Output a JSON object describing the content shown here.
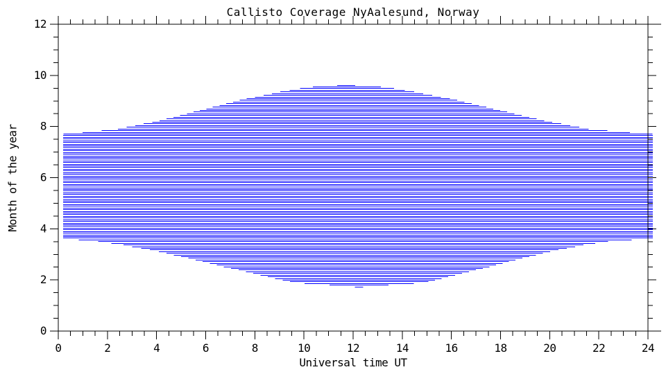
{
  "title": "Callisto Coverage NyAalesund, Norway",
  "x_axis": {
    "label": "Universal time UT",
    "major_ticks": [
      0,
      2,
      4,
      6,
      8,
      10,
      12,
      14,
      16,
      18,
      20,
      22,
      24
    ],
    "minor_step": 0.5,
    "range": [
      0,
      24
    ]
  },
  "y_axis": {
    "label": "Month of the year",
    "major_ticks": [
      0,
      2,
      4,
      6,
      8,
      10,
      12
    ],
    "minor_step": 0.5,
    "range": [
      0,
      12
    ]
  },
  "colors": {
    "coverage_line": "#0000ff",
    "axis": "#000000",
    "background": "#ffffff"
  },
  "chart_data": {
    "type": "area",
    "subtype": "daily-coverage-horizontal-lines",
    "title": "Callisto Coverage NyAalesund, Norway",
    "xlabel": "Universal time UT",
    "ylabel": "Month of the year",
    "xlim": [
      0,
      24
    ],
    "ylim": [
      0,
      12
    ],
    "grid": false,
    "legend": false,
    "line_step_days": 2,
    "days_per_month": 30.4375,
    "full_coverage_span_ut": [
      0.2,
      24.2
    ],
    "envelope_month_rise_set": [
      {
        "month": 1.73,
        "rise": 12.24,
        "set": 12.24
      },
      {
        "month": 1.9,
        "rise": 9.6,
        "set": 14.9
      },
      {
        "month": 2.2,
        "rise": 8.24,
        "set": 16.14
      },
      {
        "month": 2.5,
        "rise": 6.87,
        "set": 17.43
      },
      {
        "month": 2.8,
        "rise": 5.56,
        "set": 18.64
      },
      {
        "month": 3.1,
        "rise": 4.21,
        "set": 19.91
      },
      {
        "month": 3.4,
        "rise": 2.56,
        "set": 21.46
      },
      {
        "month": 3.55,
        "rise": 1.35,
        "set": 22.65
      },
      {
        "month": 3.62,
        "rise": 0.2,
        "set": 24.2
      },
      {
        "month": 7.72,
        "rise": 0.2,
        "set": 24.2
      },
      {
        "month": 7.9,
        "rise": 2.34,
        "set": 21.68
      },
      {
        "month": 8.2,
        "rise": 3.93,
        "set": 19.99
      },
      {
        "month": 8.5,
        "rise": 5.2,
        "set": 18.6
      },
      {
        "month": 8.8,
        "rise": 6.4,
        "set": 17.3
      },
      {
        "month": 9.1,
        "rise": 7.66,
        "set": 15.94
      },
      {
        "month": 9.4,
        "rise": 9.23,
        "set": 14.29
      },
      {
        "month": 9.55,
        "rise": 10.2,
        "set": 13.3
      },
      {
        "month": 9.65,
        "rise": 11.7,
        "set": 11.7
      }
    ]
  }
}
